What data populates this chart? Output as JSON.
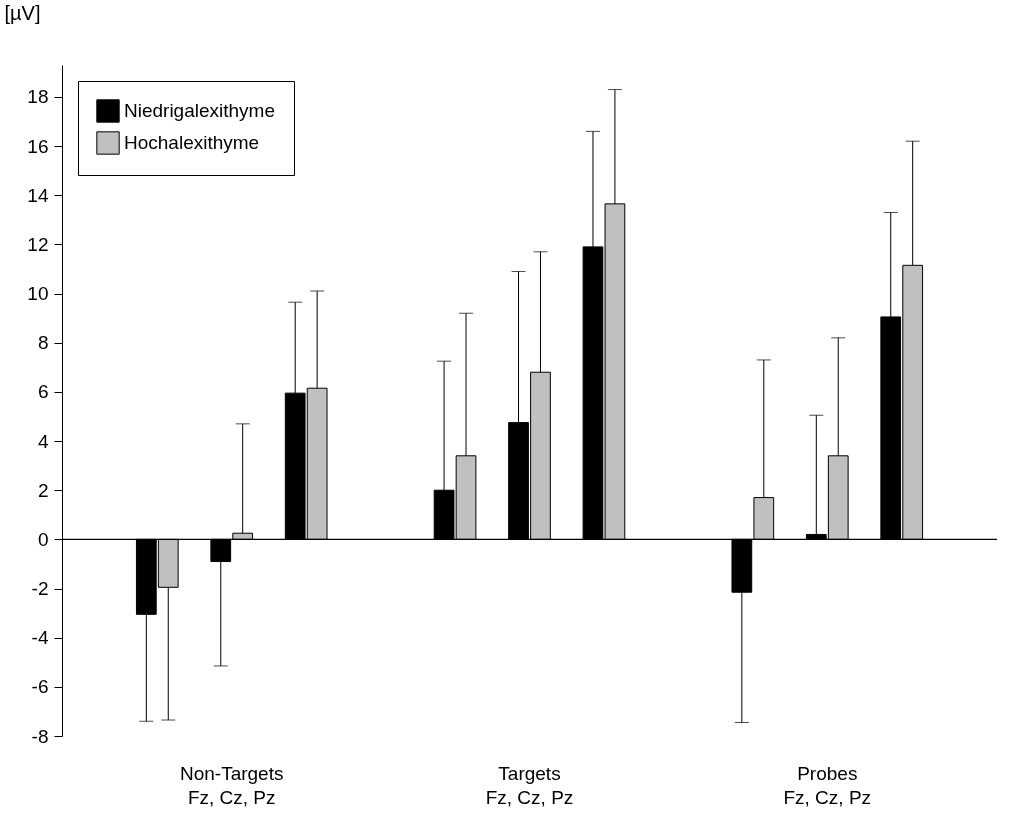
{
  "chart_data": {
    "type": "bar",
    "ylabel": "[µV]",
    "categories": [
      null,
      "Non-Targets\nFz, Cz, Pz",
      null,
      null,
      null,
      "Targets\nFz, Cz, Pz",
      null,
      null,
      null,
      "Probes\nFz, Cz, Pz",
      null
    ],
    "series": [
      {
        "name": "Niedrigalexithyme",
        "color": "#000000",
        "values": [
          -3.05,
          -0.9,
          5.95,
          null,
          2.0,
          4.75,
          11.9,
          null,
          -2.15,
          0.2,
          9.05
        ],
        "errors": [
          [
            -7.4,
            -3.05
          ],
          [
            -5.15,
            -0.9
          ],
          [
            5.95,
            9.65
          ],
          null,
          [
            2.0,
            7.25
          ],
          [
            4.75,
            10.9
          ],
          [
            11.9,
            16.6
          ],
          null,
          [
            -7.45,
            -2.15
          ],
          [
            0.2,
            5.05
          ],
          [
            9.05,
            13.3
          ]
        ]
      },
      {
        "name": "Hochalexithyme",
        "color": "#c0c0c0",
        "values": [
          -1.95,
          0.25,
          6.15,
          null,
          3.4,
          6.8,
          13.65,
          null,
          1.7,
          3.4,
          11.15
        ],
        "errors": [
          [
            -7.35,
            -1.95
          ],
          [
            0.25,
            4.7
          ],
          [
            6.15,
            10.1
          ],
          null,
          [
            3.4,
            9.2
          ],
          [
            6.8,
            11.7
          ],
          [
            13.65,
            18.3
          ],
          null,
          [
            1.7,
            7.3
          ],
          [
            3.4,
            8.2
          ],
          [
            11.15,
            16.2
          ]
        ]
      }
    ],
    "ylim": [
      -8,
      19.3
    ],
    "yticks": [
      -8,
      -6,
      -4,
      -2,
      0,
      2,
      4,
      6,
      8,
      10,
      12,
      14,
      16,
      18
    ],
    "legend": "top left"
  }
}
